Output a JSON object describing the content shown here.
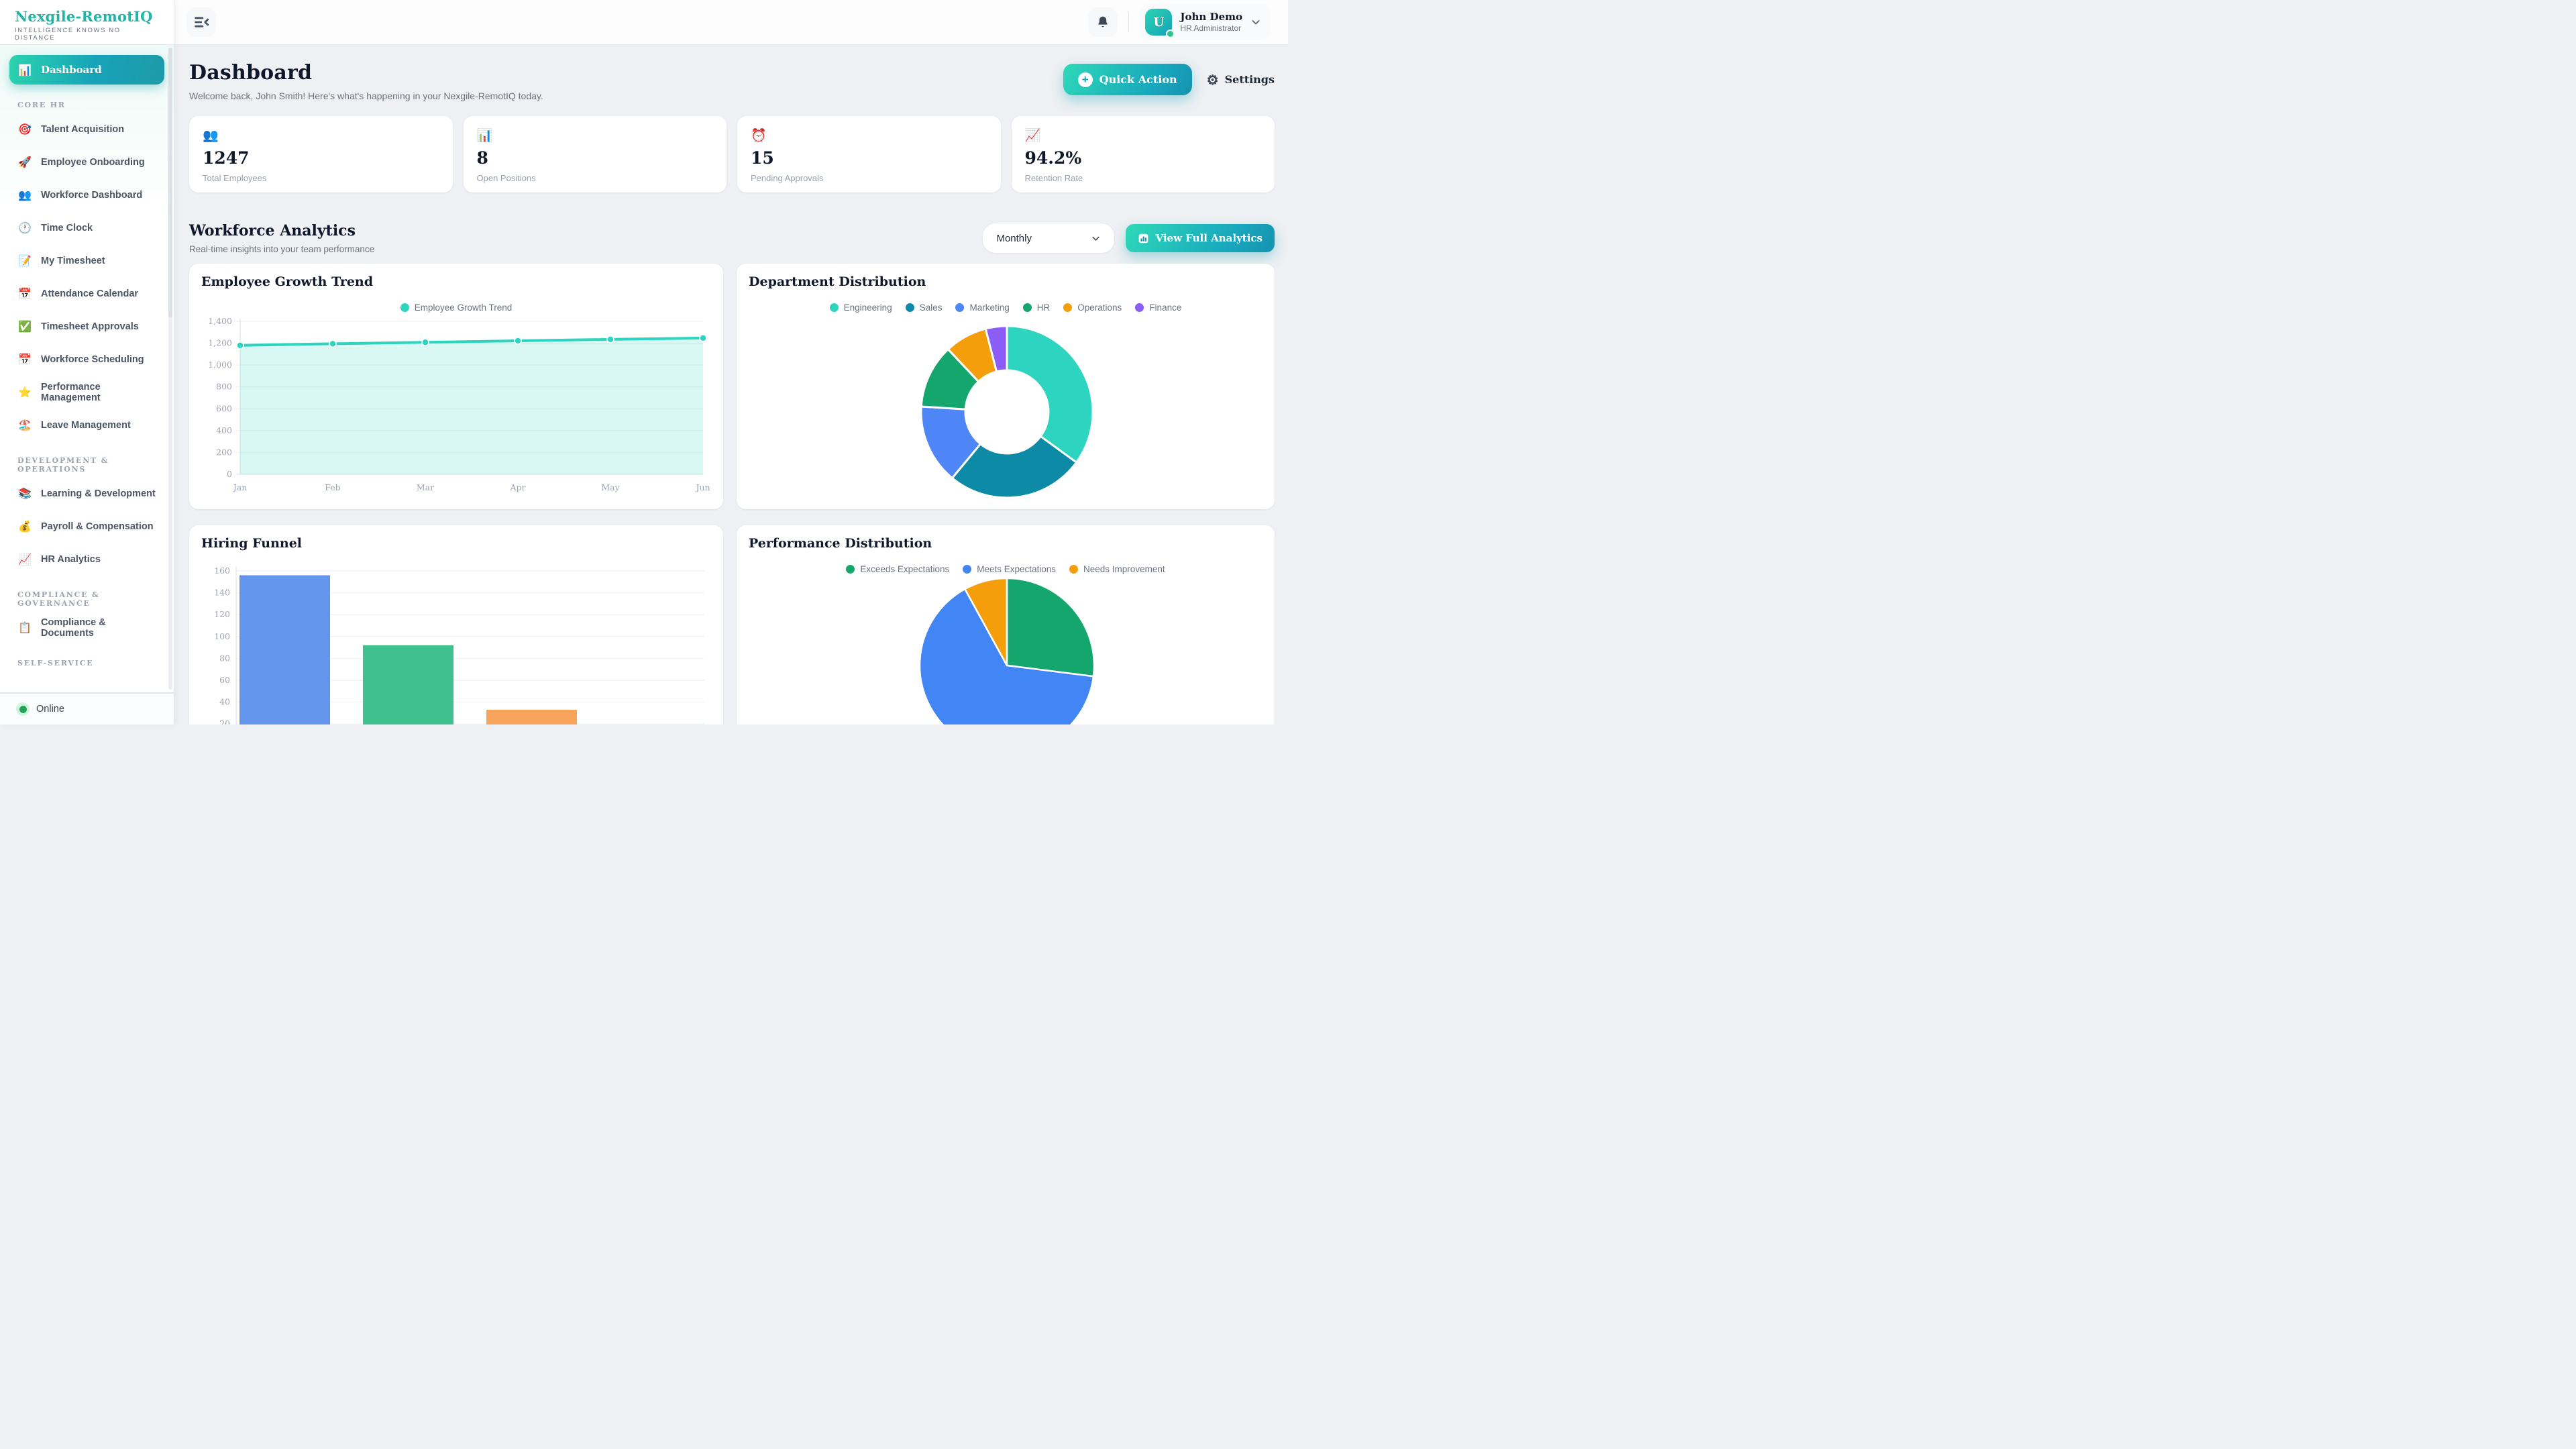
{
  "colors": {
    "accent_from": "#2ed9b8",
    "accent_to": "#1693ae",
    "logo": "#1fb6a6",
    "online": "#22a55b"
  },
  "sidebar": {
    "logo_title": "Nexgile-RemotIQ",
    "logo_subtitle": "INTELLIGENCE KNOWS NO DISTANCE",
    "status_label": "Online",
    "sections": [
      {
        "header": null,
        "items": [
          {
            "icon": "📊",
            "icon_name": "bar-chart-icon",
            "label": "Dashboard",
            "active": true
          }
        ]
      },
      {
        "header": "CORE HR",
        "items": [
          {
            "icon": "🎯",
            "icon_name": "target-icon",
            "label": "Talent Acquisition"
          },
          {
            "icon": "🚀",
            "icon_name": "rocket-icon",
            "label": "Employee Onboarding"
          },
          {
            "icon": "👥",
            "icon_name": "users-icon",
            "label": "Workforce Dashboard"
          },
          {
            "icon": "🕐",
            "icon_name": "clock-icon",
            "label": "Time Clock"
          },
          {
            "icon": "📝",
            "icon_name": "memo-icon",
            "label": "My Timesheet"
          },
          {
            "icon": "📅",
            "icon_name": "calendar-icon",
            "label": "Attendance Calendar"
          },
          {
            "icon": "✅",
            "icon_name": "check-icon",
            "label": "Timesheet Approvals"
          },
          {
            "icon": "📅",
            "icon_name": "calendar-icon",
            "label": "Workforce Scheduling"
          },
          {
            "icon": "⭐",
            "icon_name": "star-icon",
            "label": "Performance Management"
          },
          {
            "icon": "🏖️",
            "icon_name": "beach-umbrella-icon",
            "label": "Leave Management"
          }
        ]
      },
      {
        "header": "DEVELOPMENT & OPERATIONS",
        "items": [
          {
            "icon": "📚",
            "icon_name": "books-icon",
            "label": "Learning & Development"
          },
          {
            "icon": "💰",
            "icon_name": "money-bag-icon",
            "label": "Payroll & Compensation"
          },
          {
            "icon": "📈",
            "icon_name": "chart-increasing-icon",
            "label": "HR Analytics"
          }
        ]
      },
      {
        "header": "COMPLIANCE & GOVERNANCE",
        "items": [
          {
            "icon": "📋",
            "icon_name": "clipboard-icon",
            "label": "Compliance & Documents"
          }
        ]
      },
      {
        "header": "SELF-SERVICE",
        "items": []
      }
    ]
  },
  "topbar": {
    "user": {
      "initial": "U",
      "name": "John Demo",
      "role": "HR Administrator"
    }
  },
  "page": {
    "title": "Dashboard",
    "welcome": "Welcome back, John Smith! Here's what's happening in your Nexgile-RemotIQ today.",
    "quick_action_label": "Quick Action",
    "settings_label": "Settings"
  },
  "stats": [
    {
      "icon": "👥",
      "icon_name": "users-icon",
      "value": "1247",
      "label": "Total Employees"
    },
    {
      "icon": "📊",
      "icon_name": "bar-chart-icon",
      "value": "8",
      "label": "Open Positions"
    },
    {
      "icon": "⏰",
      "icon_name": "alarm-clock-icon",
      "value": "15",
      "label": "Pending Approvals"
    },
    {
      "icon": "📈",
      "icon_name": "chart-increasing-icon",
      "value": "94.2%",
      "label": "Retention Rate"
    }
  ],
  "analytics": {
    "title": "Workforce Analytics",
    "subtitle": "Real-time insights into your team performance",
    "period_selected": "Monthly",
    "view_full_label": "View Full Analytics"
  },
  "chart_data": [
    {
      "id": "chart-growth",
      "type": "area",
      "title": "Employee Growth Trend",
      "legend": [
        {
          "label": "Employee Growth Trend",
          "color": "#2dd4bf"
        }
      ],
      "x": [
        "Jan",
        "Feb",
        "Mar",
        "Apr",
        "May",
        "Jun"
      ],
      "values": [
        1180,
        1195,
        1208,
        1222,
        1235,
        1247
      ],
      "ylim": [
        0,
        1400
      ],
      "yticks": [
        0,
        200,
        400,
        600,
        800,
        1000,
        1200,
        1400
      ],
      "line_color": "#2dd4bf",
      "fill_color": "rgba(45,212,191,0.18)",
      "grid": true,
      "legend_position": "top"
    },
    {
      "id": "chart-dept",
      "type": "donut",
      "title": "Department Distribution",
      "slices": [
        {
          "label": "Engineering",
          "value": 35,
          "color": "#2dd4bf"
        },
        {
          "label": "Sales",
          "value": 26,
          "color": "#0d8aa6"
        },
        {
          "label": "Marketing",
          "value": 15,
          "color": "#4e86f7"
        },
        {
          "label": "HR",
          "value": 12,
          "color": "#15a66e"
        },
        {
          "label": "Operations",
          "value": 8,
          "color": "#f59e0b"
        },
        {
          "label": "Finance",
          "value": 4,
          "color": "#8b5cf6"
        }
      ],
      "legend_position": "top"
    },
    {
      "id": "chart-funnel",
      "type": "bar",
      "title": "Hiring Funnel",
      "categories": [
        "",
        "",
        ""
      ],
      "values": [
        156,
        92,
        33
      ],
      "colors": [
        "#6495ed",
        "#41c08f",
        "#f8a45c"
      ],
      "ylim": [
        0,
        160
      ],
      "yticks": [
        20,
        40,
        60,
        80,
        100,
        120,
        140,
        160
      ],
      "grid": true,
      "note": "x-axis labels cut off below viewport"
    },
    {
      "id": "chart-perf",
      "type": "pie",
      "title": "Performance Distribution",
      "slices": [
        {
          "label": "Exceeds Expectations",
          "value": 27,
          "color": "#15a66e"
        },
        {
          "label": "Meets Expectations",
          "value": 65,
          "color": "#4285f4"
        },
        {
          "label": "Needs Improvement",
          "value": 8,
          "color": "#f59e0b"
        }
      ],
      "legend_position": "top"
    }
  ]
}
